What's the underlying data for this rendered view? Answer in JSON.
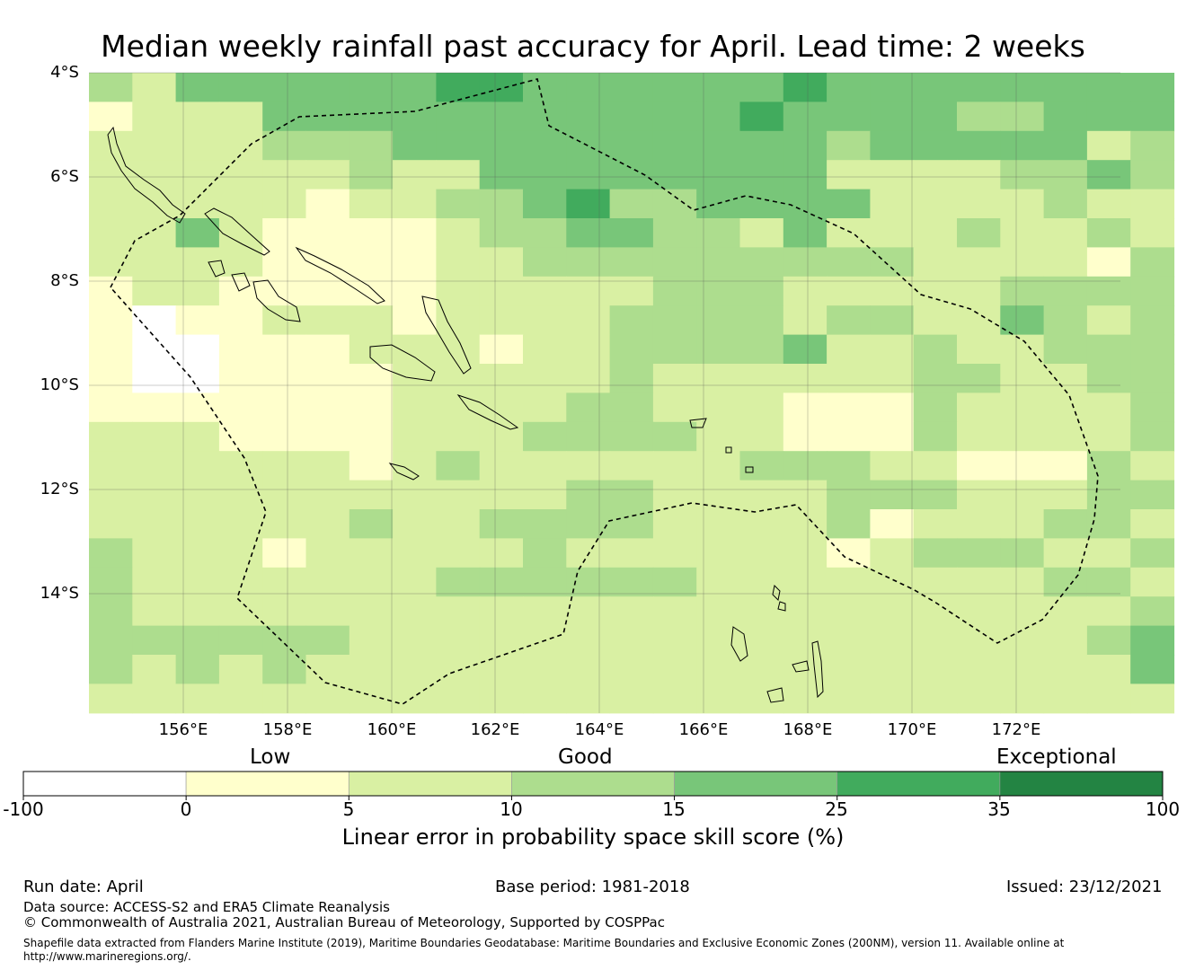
{
  "title": "Median weekly rainfall past accuracy for April. Lead time: 2 weeks",
  "map": {
    "lon_range": [
      154.2,
      174.0
    ],
    "lat_range": [
      -16.25,
      -4.0
    ],
    "cell_deg": 0.83,
    "lat_ticks": [
      "4°S",
      "6°S",
      "8°S",
      "10°S",
      "12°S",
      "14°S"
    ],
    "lon_ticks": [
      "156°E",
      "158°E",
      "160°E",
      "162°E",
      "164°E",
      "166°E",
      "168°E",
      "170°E",
      "172°E"
    ],
    "grid_rows_note": "each string is one row of cells from north to south; digit = colour class index (0 <0, 1 0-5, 2 5-10, 3 10-15, 4 15-25, 5 25-35, 6 35-100)",
    "grid": [
      "3244444455444444544444444",
      "1222444444444445444433444",
      "2222333444444444434444423",
      "2222223224444444422223343",
      "2222212233453344442222322",
      "2242111123344332422232232",
      "2222111122333333333222213",
      "1221111122222333222223333",
      "1011222122223333233224323",
      "1001112221223333422322333",
      "1001111222223222222332233",
      "1111111222233222111322223",
      "2221111222333322111322223",
      "2222221232222223332211132",
      "2222222222233222233322233",
      "2222223223333222231222332",
      "3222122222322222212333223",
      "3222222233333322222222332",
      "3222222222222222222222223",
      "3333332222222222222222234",
      "3232322222222222222222224",
      "2222222222222222222222222"
    ],
    "colors": [
      "#ffffff",
      "#ffffcc",
      "#d9f0a3",
      "#addd8e",
      "#78c679",
      "#41ab5d",
      "#238443"
    ],
    "eez_boundary": "dashed",
    "land_outline": "thin black"
  },
  "legend": {
    "category_labels": [
      "Low",
      "Good",
      "Exceptional"
    ],
    "bins": [
      {
        "from": -100,
        "to": 0,
        "color": "#ffffff"
      },
      {
        "from": 0,
        "to": 5,
        "color": "#ffffcc"
      },
      {
        "from": 5,
        "to": 10,
        "color": "#d9f0a3"
      },
      {
        "from": 10,
        "to": 15,
        "color": "#addd8e"
      },
      {
        "from": 15,
        "to": 25,
        "color": "#78c679"
      },
      {
        "from": 25,
        "to": 35,
        "color": "#41ab5d"
      },
      {
        "from": 35,
        "to": 100,
        "color": "#238443"
      }
    ],
    "tick_labels": [
      "-100",
      "0",
      "5",
      "10",
      "15",
      "25",
      "35",
      "100"
    ],
    "title": "Linear error in probability space skill score (%)"
  },
  "footer": {
    "run_date": "Run date: April",
    "base_period": "Base period: 1981-2018",
    "issued": "Issued: 23/12/2021",
    "data_source": "Data source: ACCESS-S2 and ERA5 Climate Reanalysis",
    "copyright": "© Commonwealth of Australia 2021, Australian Bureau of Meteorology, Supported by COSPPac",
    "shapefile_line1": "Shapefile data extracted from Flanders Marine Institute (2019), Maritime Boundaries Geodatabase: Maritime Boundaries and Exclusive Economic Zones (200NM), version 11. Available online at",
    "shapefile_line2": "http://www.marineregions.org/."
  }
}
